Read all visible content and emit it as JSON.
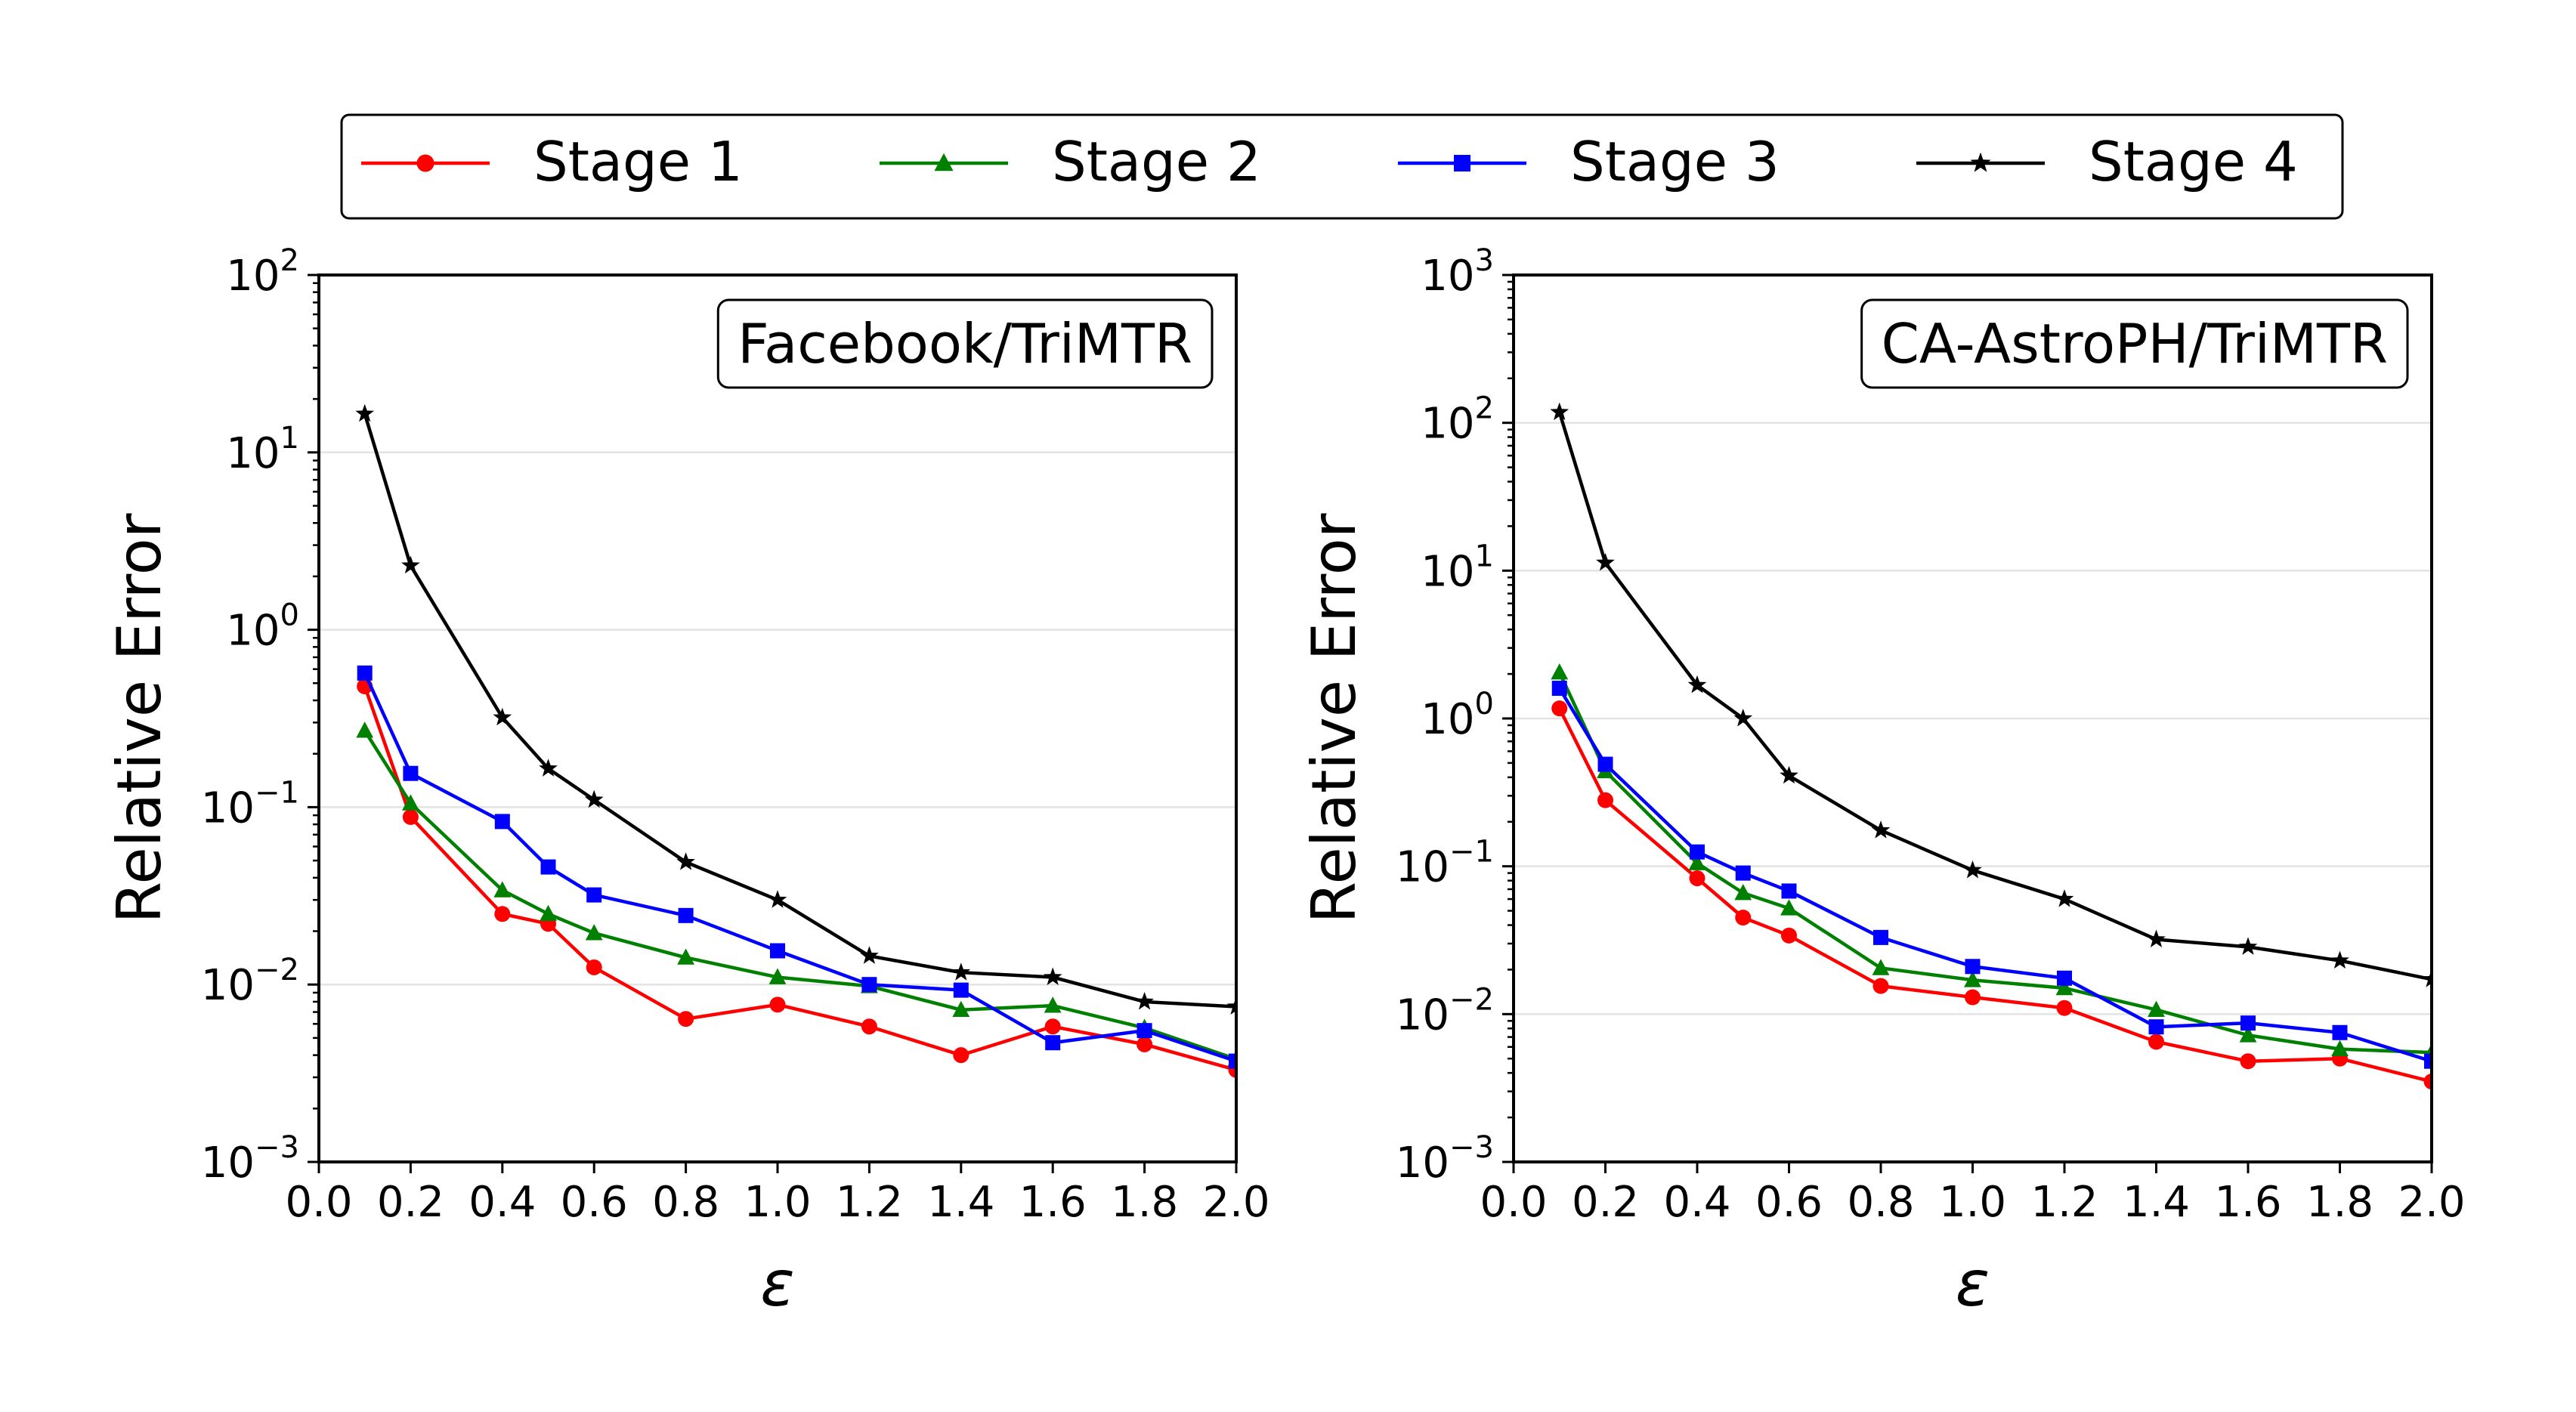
{
  "legend": {
    "placement": "top-center",
    "entries": [
      {
        "label": "Stage 1",
        "color": "#ff0000",
        "marker": "circle"
      },
      {
        "label": "Stage 2",
        "color": "#008000",
        "marker": "triangle"
      },
      {
        "label": "Stage 3",
        "color": "#0000ff",
        "marker": "square"
      },
      {
        "label": "Stage 4",
        "color": "#000000",
        "marker": "star"
      }
    ]
  },
  "chart_data": [
    {
      "type": "line",
      "title": "Facebook/TriMTR",
      "xlabel": "ε",
      "ylabel": "Relative Error",
      "yscale": "log",
      "xlim": [
        0.0,
        2.0
      ],
      "ylim_exp": [
        -3,
        2
      ],
      "xticks": [
        "0.0",
        "0.2",
        "0.4",
        "0.6",
        "0.8",
        "1.0",
        "1.2",
        "1.4",
        "1.6",
        "1.8",
        "2.0"
      ],
      "grid": "horizontal",
      "x": [
        0.1,
        0.2,
        0.4,
        0.5,
        0.6,
        0.8,
        1.0,
        1.2,
        1.4,
        1.6,
        1.8,
        2.0
      ],
      "series": [
        {
          "name": "Stage 1",
          "values": [
            0.48,
            0.088,
            0.025,
            0.022,
            0.0125,
            0.0064,
            0.0077,
            0.0058,
            0.004,
            0.0058,
            0.0046,
            0.0033
          ]
        },
        {
          "name": "Stage 2",
          "values": [
            0.27,
            0.105,
            0.034,
            0.025,
            0.0195,
            0.0142,
            0.011,
            0.0098,
            0.0072,
            0.0076,
            0.0057,
            0.0038
          ]
        },
        {
          "name": "Stage 3",
          "values": [
            0.57,
            0.155,
            0.083,
            0.046,
            0.032,
            0.0245,
            0.0155,
            0.01,
            0.0093,
            0.0047,
            0.0055,
            0.0037
          ]
        },
        {
          "name": "Stage 4",
          "values": [
            16.5,
            2.3,
            0.32,
            0.165,
            0.11,
            0.049,
            0.03,
            0.0145,
            0.0117,
            0.011,
            0.008,
            0.0075
          ]
        }
      ]
    },
    {
      "type": "line",
      "title": "CA-AstroPH/TriMTR",
      "xlabel": "ε",
      "ylabel": "Relative Error",
      "yscale": "log",
      "xlim": [
        0.0,
        2.0
      ],
      "ylim_exp": [
        -3,
        3
      ],
      "xticks": [
        "0.0",
        "0.2",
        "0.4",
        "0.6",
        "0.8",
        "1.0",
        "1.2",
        "1.4",
        "1.6",
        "1.8",
        "2.0"
      ],
      "grid": "horizontal",
      "x": [
        0.1,
        0.2,
        0.4,
        0.5,
        0.6,
        0.8,
        1.0,
        1.2,
        1.4,
        1.6,
        1.8,
        2.0
      ],
      "series": [
        {
          "name": "Stage 1",
          "values": [
            1.17,
            0.28,
            0.083,
            0.045,
            0.034,
            0.0155,
            0.013,
            0.011,
            0.0065,
            0.0048,
            0.005,
            0.0035
          ]
        },
        {
          "name": "Stage 2",
          "values": [
            2.05,
            0.44,
            0.105,
            0.066,
            0.052,
            0.0205,
            0.017,
            0.015,
            0.0107,
            0.0072,
            0.0058,
            0.0055
          ]
        },
        {
          "name": "Stage 3",
          "values": [
            1.6,
            0.49,
            0.125,
            0.09,
            0.068,
            0.033,
            0.021,
            0.0175,
            0.0082,
            0.0087,
            0.0075,
            0.0048
          ]
        },
        {
          "name": "Stage 4",
          "values": [
            118,
            11.3,
            1.68,
            1.0,
            0.41,
            0.175,
            0.094,
            0.06,
            0.032,
            0.0285,
            0.023,
            0.0172
          ]
        }
      ]
    }
  ]
}
